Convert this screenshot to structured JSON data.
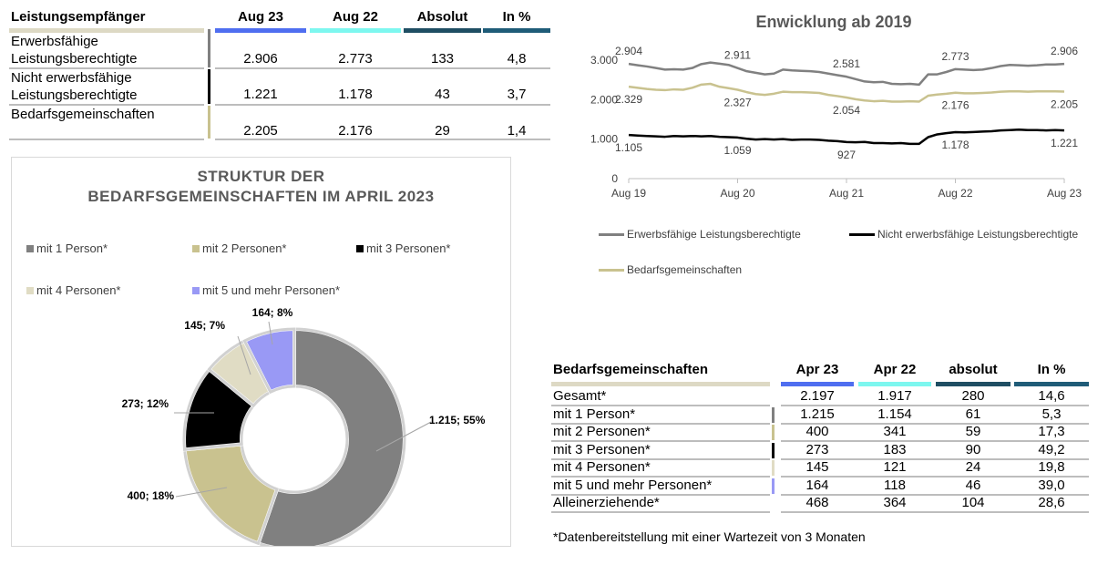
{
  "table_top": {
    "headers": [
      "Leistungsempfänger",
      "Aug 23",
      "Aug 22",
      "Absolut",
      "In %"
    ],
    "header_colors": [
      "#ddd9c4",
      "#4f6ef0",
      "#7df7ef",
      "#1f4e63",
      "#1f5c78"
    ],
    "rows": [
      {
        "label_line1": "Erwerbsfähige",
        "label_line2": "Leistungsberechtigte",
        "values": [
          "2.906",
          "2.773",
          "133",
          "4,8"
        ],
        "mark_color": "#808080"
      },
      {
        "label_line1": "Nicht erwerbsfähige",
        "label_line2": "Leistungsberechtigte",
        "values": [
          "1.221",
          "1.178",
          "43",
          "3,7"
        ],
        "mark_color": "#000000"
      },
      {
        "label_line1": "",
        "label_line2": "Bedarfsgemeinschaften",
        "values": [
          "2.205",
          "2.176",
          "29",
          "1,4"
        ],
        "mark_color": "#c9c28f"
      }
    ]
  },
  "table_bottom": {
    "headers": [
      "Bedarfsgemeinschaften",
      "Apr 23",
      "Apr 22",
      "absolut",
      "In %"
    ],
    "header_colors": [
      "#ddd9c4",
      "#4f6ef0",
      "#7df7ef",
      "#1f4e63",
      "#1f5c78"
    ],
    "rows": [
      {
        "label": "Gesamt*",
        "values": [
          "2.197",
          "1.917",
          "280",
          "14,6"
        ],
        "mark_color": ""
      },
      {
        "label": "mit 1 Person*",
        "values": [
          "1.215",
          "1.154",
          "61",
          "5,3"
        ],
        "mark_color": "#808080"
      },
      {
        "label": "mit 2 Personen*",
        "values": [
          "400",
          "341",
          "59",
          "17,3"
        ],
        "mark_color": "#c9c28f"
      },
      {
        "label": "mit 3 Personen*",
        "values": [
          "273",
          "183",
          "90",
          "49,2"
        ],
        "mark_color": "#000000"
      },
      {
        "label": "mit 4 Personen*",
        "values": [
          "145",
          "121",
          "24",
          "19,8"
        ],
        "mark_color": "#e0dcc4"
      },
      {
        "label": "mit 5 und mehr Personen*",
        "values": [
          "164",
          "118",
          "46",
          "39,0"
        ],
        "mark_color": "#9999f5"
      },
      {
        "label": "Alleinerziehende*",
        "values": [
          "468",
          "364",
          "104",
          "28,6"
        ],
        "mark_color": ""
      }
    ],
    "footnote": "*Datenbereitstellung mit einer Wartezeit von 3 Monaten"
  },
  "chart_data": [
    {
      "type": "pie",
      "title_line1": "STRUKTUR DER",
      "title_line2": "BEDARFSGEMEINSCHAFTEN IM APRIL 2023",
      "legend_position": "top",
      "slices": [
        {
          "name": "mit 1 Person*",
          "value": 1215,
          "label": "1.215; 55%",
          "color": "#808080"
        },
        {
          "name": "mit 2 Personen*",
          "value": 400,
          "label": "400; 18%",
          "color": "#c9c28f"
        },
        {
          "name": "mit 3 Personen*",
          "value": 273,
          "label": "273; 12%",
          "color": "#000000"
        },
        {
          "name": "mit 4 Personen*",
          "value": 145,
          "label": "145; 7%",
          "color": "#e0dcc4"
        },
        {
          "name": "mit 5 und mehr Personen*",
          "value": 164,
          "label": "164; 8%",
          "color": "#9999f5"
        }
      ]
    },
    {
      "type": "line",
      "title": "Enwicklung ab 2019",
      "ylim": [
        0,
        3000
      ],
      "yticks": [
        0,
        1000,
        2000,
        3000
      ],
      "ytick_labels": [
        "0",
        "1.000",
        "2.000",
        "3.000"
      ],
      "xlim": [
        0,
        48
      ],
      "xticks": [
        0,
        12,
        24,
        36,
        48
      ],
      "xtick_labels": [
        "Aug 19",
        "Aug 20",
        "Aug 21",
        "Aug 22",
        "Aug 23"
      ],
      "legend_position": "bottom",
      "series": [
        {
          "name": "Erwerbsfähige Leistungsberechtigte",
          "color": "#808080",
          "values": [
            2904,
            2870,
            2840,
            2800,
            2760,
            2770,
            2760,
            2800,
            2900,
            2940,
            2911,
            2880,
            2800,
            2720,
            2680,
            2640,
            2660,
            2760,
            2740,
            2730,
            2720,
            2700,
            2660,
            2620,
            2581,
            2520,
            2460,
            2440,
            2450,
            2400,
            2390,
            2400,
            2380,
            2640,
            2640,
            2700,
            2773,
            2760,
            2750,
            2760,
            2800,
            2850,
            2880,
            2870,
            2860,
            2870,
            2890,
            2890,
            2906
          ],
          "labels": [
            {
              "x": 0,
              "text": "2.904",
              "pos": "above"
            },
            {
              "x": 12,
              "text": "2.911",
              "pos": "above"
            },
            {
              "x": 24,
              "text": "2.581",
              "pos": "above"
            },
            {
              "x": 36,
              "text": "2.773",
              "pos": "above"
            },
            {
              "x": 48,
              "text": "2.906",
              "pos": "above"
            }
          ]
        },
        {
          "name": "Nicht erwerbsfähige Leistungsberechtigte",
          "color": "#000000",
          "values": [
            1105,
            1090,
            1080,
            1070,
            1060,
            1080,
            1070,
            1080,
            1070,
            1080,
            1059,
            1050,
            1040,
            1010,
            990,
            1000,
            990,
            1000,
            980,
            990,
            990,
            980,
            960,
            950,
            927,
            920,
            930,
            900,
            900,
            890,
            900,
            880,
            880,
            1050,
            1120,
            1150,
            1178,
            1170,
            1180,
            1190,
            1200,
            1220,
            1230,
            1240,
            1230,
            1230,
            1220,
            1230,
            1221
          ],
          "labels": [
            {
              "x": 0,
              "text": "1.105",
              "pos": "below"
            },
            {
              "x": 12,
              "text": "1.059",
              "pos": "below"
            },
            {
              "x": 24,
              "text": "927",
              "pos": "below"
            },
            {
              "x": 36,
              "text": "1.178",
              "pos": "below"
            },
            {
              "x": 48,
              "text": "1.221",
              "pos": "below"
            }
          ]
        },
        {
          "name": "Bedarfsgemeinschaften",
          "color": "#c9c28f",
          "values": [
            2329,
            2300,
            2270,
            2250,
            2240,
            2260,
            2250,
            2300,
            2380,
            2400,
            2327,
            2290,
            2250,
            2190,
            2140,
            2120,
            2150,
            2200,
            2190,
            2190,
            2180,
            2170,
            2120,
            2090,
            2054,
            2010,
            1980,
            1960,
            1970,
            1950,
            1950,
            1960,
            1950,
            2100,
            2130,
            2150,
            2176,
            2160,
            2160,
            2170,
            2180,
            2200,
            2210,
            2210,
            2200,
            2210,
            2210,
            2210,
            2205
          ],
          "labels": [
            {
              "x": 0,
              "text": "2.329",
              "pos": "below"
            },
            {
              "x": 12,
              "text": "2.327",
              "pos": "below"
            },
            {
              "x": 24,
              "text": "2.054",
              "pos": "below"
            },
            {
              "x": 36,
              "text": "2.176",
              "pos": "below"
            },
            {
              "x": 48,
              "text": "2.205",
              "pos": "below"
            }
          ]
        }
      ]
    }
  ]
}
